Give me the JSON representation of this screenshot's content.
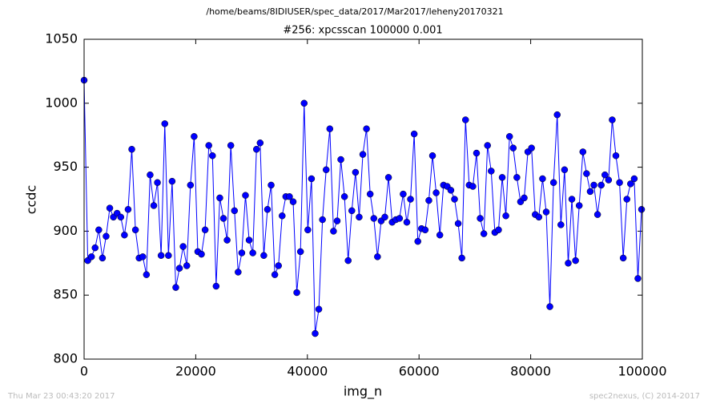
{
  "chart_data": {
    "type": "line",
    "subtitle": "/home/beams/8IDIUSER/spec_data/2017/Mar2017/leheny20170321",
    "title": "#256: xpcsscan 100000 0.001",
    "x_label": "img_n",
    "y_label": "ccdc",
    "xlim": [
      0,
      100000
    ],
    "xticks": [
      0,
      20000,
      40000,
      60000,
      80000,
      100000
    ],
    "ylim": [
      800,
      1050
    ],
    "yticks": [
      800,
      850,
      900,
      950,
      1000,
      1050
    ],
    "grid": false,
    "x": [
      0,
      657,
      1314,
      1971,
      2628,
      3285,
      3942,
      4599,
      5256,
      5913,
      6570,
      7227,
      7884,
      8541,
      9198,
      9855,
      10512,
      11169,
      11826,
      12483,
      13140,
      13797,
      14454,
      15111,
      15768,
      16425,
      17082,
      17739,
      18396,
      19053,
      19710,
      20367,
      21024,
      21681,
      22338,
      22995,
      23652,
      24309,
      24966,
      25623,
      26280,
      26937,
      27594,
      28251,
      28908,
      29565,
      30222,
      30879,
      31536,
      32193,
      32850,
      33507,
      34164,
      34821,
      35478,
      36135,
      36792,
      37449,
      38106,
      38763,
      39420,
      40077,
      40734,
      41391,
      42048,
      42705,
      43362,
      44019,
      44676,
      45333,
      45990,
      46647,
      47304,
      47961,
      48618,
      49275,
      49932,
      50589,
      51246,
      51903,
      52560,
      53217,
      53874,
      54531,
      55188,
      55845,
      56502,
      57159,
      57816,
      58473,
      59130,
      59787,
      60444,
      61101,
      61758,
      62415,
      63072,
      63729,
      64386,
      65043,
      65700,
      66357,
      67014,
      67671,
      68328,
      68985,
      69642,
      70299,
      70956,
      71613,
      72270,
      72927,
      73584,
      74241,
      74898,
      75555,
      76212,
      76869,
      77526,
      78183,
      78840,
      79497,
      80154,
      80811,
      81468,
      82125,
      82782,
      83439,
      84096,
      84753,
      85410,
      86067,
      86724,
      87381,
      88038,
      88695,
      89352,
      90009,
      90666,
      91323,
      91980,
      92637,
      93294,
      93951,
      94608,
      95265,
      95922,
      96579,
      97236,
      97893,
      98550,
      99207,
      99864
    ],
    "series": [
      {
        "color": "#0000ff",
        "values": [
          1018,
          877,
          880,
          887,
          901,
          879,
          896,
          918,
          911,
          914,
          911,
          897,
          917,
          964,
          901,
          879,
          880,
          866,
          944,
          920,
          938,
          881,
          984,
          881,
          939,
          856,
          871,
          888,
          873,
          936,
          974,
          884,
          882,
          901,
          967,
          959,
          857,
          926,
          910,
          893,
          967,
          916,
          868,
          883,
          928,
          893,
          883,
          964,
          969,
          881,
          917,
          936,
          866,
          873,
          912,
          927,
          927,
          923,
          852,
          884,
          1000,
          901,
          941,
          820,
          839,
          909,
          948,
          980,
          900,
          908,
          956,
          927,
          877,
          916,
          946,
          911,
          960,
          980,
          929,
          910,
          880,
          908,
          911,
          942,
          907,
          909,
          910,
          929,
          907,
          925,
          976,
          892,
          902,
          901,
          924,
          959,
          930,
          897,
          936,
          935,
          932,
          925,
          906,
          879,
          987,
          936,
          935,
          961,
          910,
          898,
          967,
          947,
          899,
          901,
          942,
          912,
          974,
          965,
          942,
          923,
          926,
          962,
          965,
          913,
          911,
          941,
          915,
          841,
          938,
          991,
          905,
          948,
          875,
          925,
          877,
          920,
          962,
          945,
          931,
          936,
          913,
          936,
          944,
          940,
          987,
          959,
          938,
          879,
          925,
          937,
          941,
          863,
          917
        ]
      }
    ]
  },
  "footer": {
    "left": "Thu Mar 23 00:43:20 2017",
    "right": "spec2nexus, (C) 2014-2017"
  }
}
